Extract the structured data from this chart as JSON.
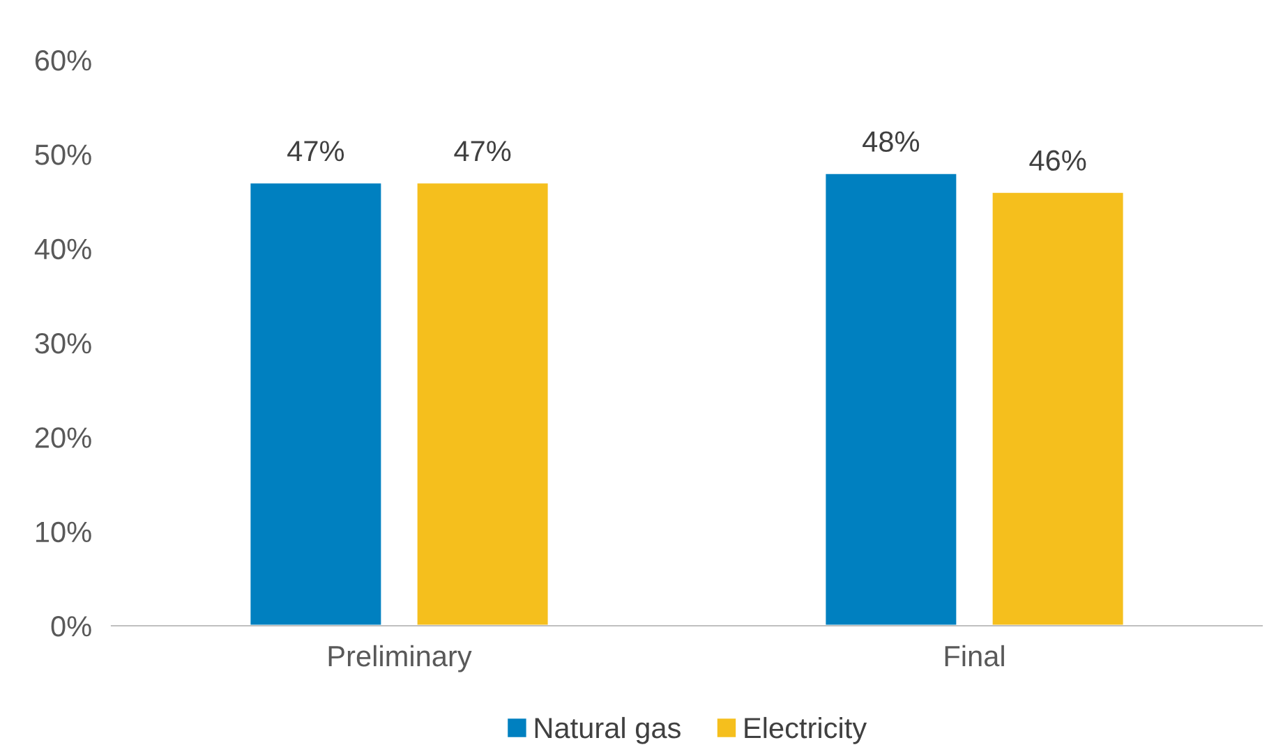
{
  "chart_data": {
    "type": "bar",
    "categories": [
      "Preliminary",
      "Final"
    ],
    "series": [
      {
        "name": "Natural gas",
        "color": "#0080c0",
        "values": [
          47,
          48
        ],
        "value_labels": [
          "47%",
          "48%"
        ]
      },
      {
        "name": "Electricity",
        "color": "#f5bf1d",
        "values": [
          47,
          46
        ],
        "value_labels": [
          "47%",
          "46%"
        ]
      }
    ],
    "ylim": [
      0,
      60
    ],
    "yticks": [
      {
        "value": 0,
        "label": "0%"
      },
      {
        "value": 10,
        "label": "10%"
      },
      {
        "value": 20,
        "label": "20%"
      },
      {
        "value": 30,
        "label": "30%"
      },
      {
        "value": 40,
        "label": "40%"
      },
      {
        "value": 50,
        "label": "50%"
      },
      {
        "value": 60,
        "label": "60%"
      }
    ],
    "grid": false,
    "legend": "bottom"
  }
}
